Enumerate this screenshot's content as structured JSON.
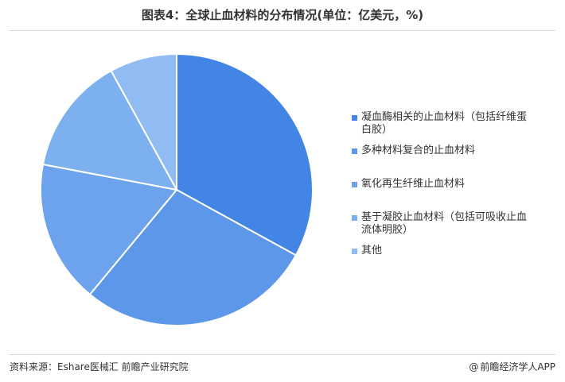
{
  "title": "图表4：全球止血材料的分布情况(单位：亿美元，%)",
  "footer": {
    "source": "资料来源：Eshare医械汇 前瞻产业研究院",
    "brand": "前瞻经济学人APP",
    "brand_icon": "at-sign-icon"
  },
  "colors": {
    "slice_border": "#ffffff",
    "series": [
      "#4285e4",
      "#5d97e9",
      "#6da3ec",
      "#7db0ef",
      "#91bcf3"
    ]
  },
  "chart_data": {
    "type": "pie",
    "start_angle_deg": 0,
    "direction": "clockwise",
    "legend_position": "right",
    "labels": [
      "凝血酶相关的止血材料（包括纤维蛋白胶）",
      "多种材料复合的止血材料",
      "氧化再生纤维止血材料",
      "基于凝胶止血材料（包括可吸收止血流体明胶）",
      "其他"
    ],
    "values": [
      33,
      28,
      17,
      14,
      8
    ]
  }
}
